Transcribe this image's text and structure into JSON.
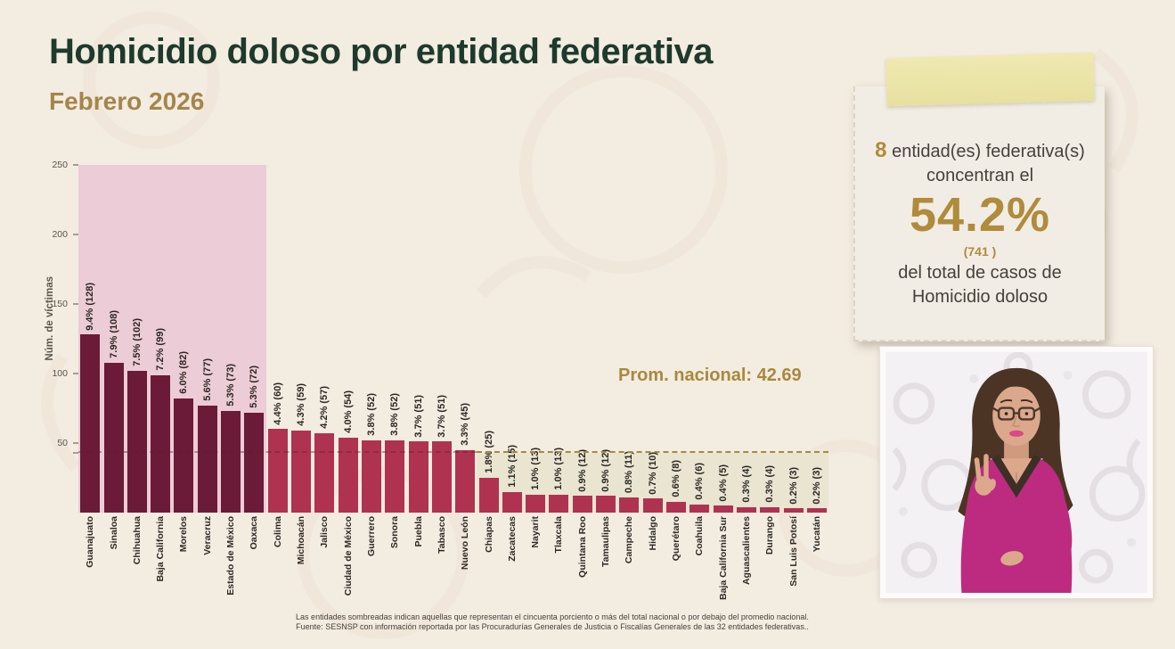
{
  "page": {
    "title": "Homicidio doloso por entidad federativa",
    "subtitle": "Febrero 2026"
  },
  "chart_data": {
    "type": "bar",
    "ylabel": "Núm. de víctimas",
    "ylim": [
      0,
      250
    ],
    "yticks": [
      50,
      100,
      150,
      200,
      250
    ],
    "grid": false,
    "average_line": {
      "value": 42.69,
      "label": "Prom. nacional: 42.69"
    },
    "highlight_count": 8,
    "below_average_from_index": 17,
    "bars": [
      {
        "state": "Guanajuato",
        "pct": "9.4%",
        "value": 128
      },
      {
        "state": "Sinaloa",
        "pct": "7.9%",
        "value": 108
      },
      {
        "state": "Chihuahua",
        "pct": "7.5%",
        "value": 102
      },
      {
        "state": "Baja California",
        "pct": "7.2%",
        "value": 99
      },
      {
        "state": "Morelos",
        "pct": "6.0%",
        "value": 82
      },
      {
        "state": "Veracruz",
        "pct": "5.6%",
        "value": 77
      },
      {
        "state": "Estado de México",
        "pct": "5.3%",
        "value": 73
      },
      {
        "state": "Oaxaca",
        "pct": "5.3%",
        "value": 72
      },
      {
        "state": "Colima",
        "pct": "4.4%",
        "value": 60
      },
      {
        "state": "Michoacán",
        "pct": "4.3%",
        "value": 59
      },
      {
        "state": "Jalisco",
        "pct": "4.2%",
        "value": 57
      },
      {
        "state": "Ciudad de México",
        "pct": "4.0%",
        "value": 54
      },
      {
        "state": "Guerrero",
        "pct": "3.8%",
        "value": 52
      },
      {
        "state": "Sonora",
        "pct": "3.8%",
        "value": 52
      },
      {
        "state": "Puebla",
        "pct": "3.7%",
        "value": 51
      },
      {
        "state": "Tabasco",
        "pct": "3.7%",
        "value": 51
      },
      {
        "state": "Nuevo León",
        "pct": "3.3%",
        "value": 45
      },
      {
        "state": "Chiapas",
        "pct": "1.8%",
        "value": 25
      },
      {
        "state": "Zacatecas",
        "pct": "1.1%",
        "value": 15
      },
      {
        "state": "Nayarit",
        "pct": "1.0%",
        "value": 13
      },
      {
        "state": "Tlaxcala",
        "pct": "1.0%",
        "value": 13
      },
      {
        "state": "Quintana Roo",
        "pct": "0.9%",
        "value": 12
      },
      {
        "state": "Tamaulipas",
        "pct": "0.9%",
        "value": 12
      },
      {
        "state": "Campeche",
        "pct": "0.8%",
        "value": 11
      },
      {
        "state": "Hidalgo",
        "pct": "0.7%",
        "value": 10
      },
      {
        "state": "Querétaro",
        "pct": "0.6%",
        "value": 8
      },
      {
        "state": "Coahuila",
        "pct": "0.4%",
        "value": 6
      },
      {
        "state": "Baja California Sur",
        "pct": "0.4%",
        "value": 5
      },
      {
        "state": "Aguascalientes",
        "pct": "0.3%",
        "value": 4
      },
      {
        "state": "Durango",
        "pct": "0.3%",
        "value": 4
      },
      {
        "state": "San Luis Potosí",
        "pct": "0.2%",
        "value": 3
      },
      {
        "state": "Yucatán",
        "pct": "0.2%",
        "value": 3
      }
    ]
  },
  "note_card": {
    "count": "8",
    "line1_rest": " entidad(es) federativa(s)",
    "line2": "concentran el",
    "big_pct": "54.2%",
    "sub_count": "(741 )",
    "line3": "del total de casos de",
    "line4": "Homicidio doloso"
  },
  "footer": {
    "line1": "Las entidades sombreadas indican aquellas que representan el cincuenta porciento o más del total nacional o por debajo del promedio nacional.",
    "line2": "Fuente: SESNSP con información reportada por las Procuradurías Generales de Justicia o Fiscalías Generales de las 32 entidades federativas.."
  },
  "colors": {
    "background": "#f3ece1",
    "title_green": "#1d3a2c",
    "accent_gold": "#b08b3c",
    "average_gold": "#a8893c",
    "bar_dark": "#6b1b37",
    "bar_light": "#b03251",
    "region_pink": "#ecccd6",
    "region_beige": "#e9e5d1"
  }
}
